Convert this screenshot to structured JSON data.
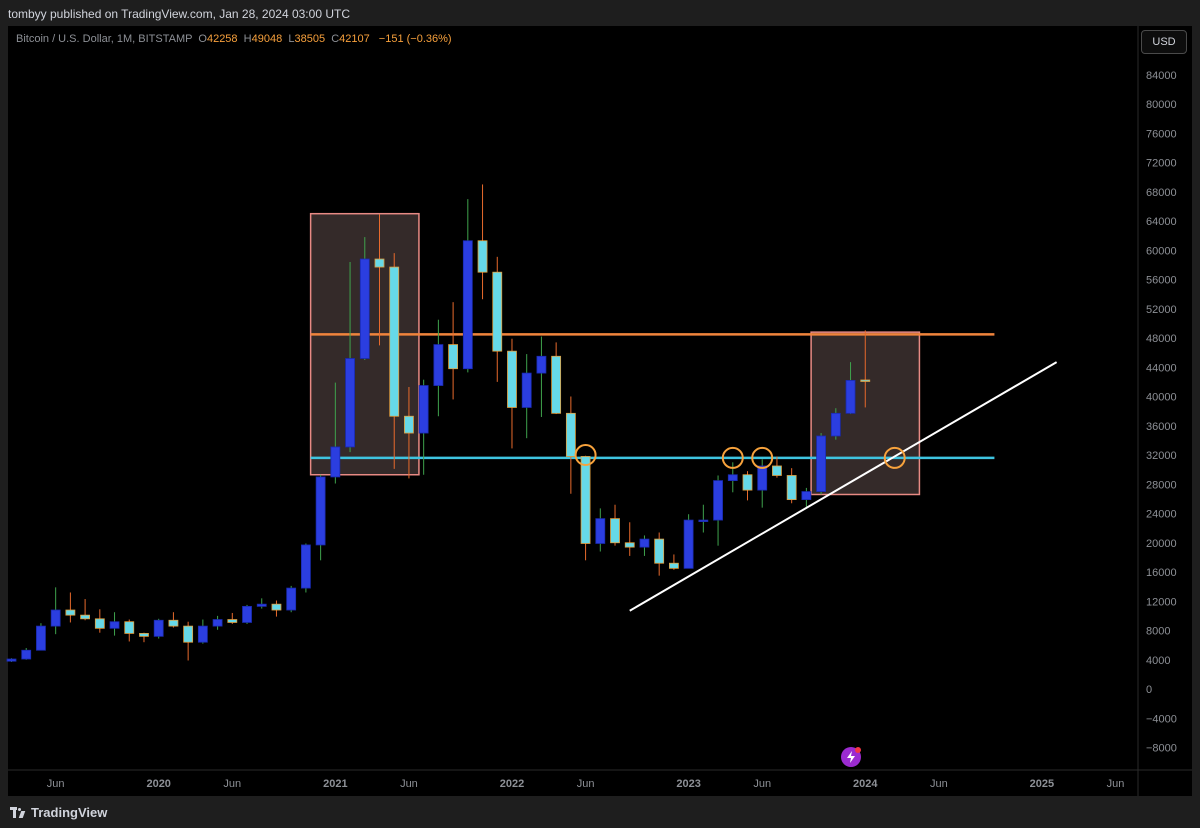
{
  "header": {
    "publish_text": "tombyy published on TradingView.com, Jan 28, 2024 03:00 UTC"
  },
  "symbol": {
    "name": "Bitcoin / U.S. Dollar, 1M, BITSTAMP",
    "open_key": "O",
    "open": "42258",
    "high_key": "H",
    "high": "49048",
    "low_key": "L",
    "low": "38505",
    "close_key": "C",
    "close": "42107",
    "change": "−151 (−0.36%)"
  },
  "currency_button": "USD",
  "footer": {
    "brand": "TradingView"
  },
  "colors": {
    "up": "#2b3ee0",
    "down": "#66d9e8",
    "wick_up": "#3fa34d",
    "wick_down": "#e86a2c",
    "resistance": "#f0843c",
    "support": "#3ec4e0",
    "trendline": "#ffffff",
    "zone_border": "#e88a84",
    "zone_fill": "#3a2f2e",
    "circle": "#f7a23c"
  },
  "chart_data": {
    "type": "candlestick",
    "title": "Bitcoin / U.S. Dollar, 1M, BITSTAMP",
    "ylim": [
      -10000,
      88000
    ],
    "y_ticks": [
      -8000,
      -4000,
      0,
      4000,
      8000,
      12000,
      16000,
      20000,
      24000,
      28000,
      32000,
      36000,
      40000,
      44000,
      48000,
      52000,
      56000,
      60000,
      64000,
      68000,
      72000,
      76000,
      80000,
      84000
    ],
    "x_ticks": [
      {
        "label": "Jun",
        "t": "2019-06"
      },
      {
        "label": "2020",
        "t": "2020-01"
      },
      {
        "label": "Jun",
        "t": "2020-06"
      },
      {
        "label": "2021",
        "t": "2021-01"
      },
      {
        "label": "Jun",
        "t": "2021-06"
      },
      {
        "label": "2022",
        "t": "2022-01"
      },
      {
        "label": "Jun",
        "t": "2022-06"
      },
      {
        "label": "2023",
        "t": "2023-01"
      },
      {
        "label": "Jun",
        "t": "2023-06"
      },
      {
        "label": "2024",
        "t": "2024-01"
      },
      {
        "label": "Jun",
        "t": "2024-06"
      },
      {
        "label": "2025",
        "t": "2025-01"
      },
      {
        "label": "Jun",
        "t": "2025-06"
      }
    ],
    "candles": [
      {
        "t": "2019-03",
        "o": 3800,
        "h": 4200,
        "l": 3700,
        "c": 4100
      },
      {
        "t": "2019-04",
        "o": 4100,
        "h": 5600,
        "l": 4000,
        "c": 5300
      },
      {
        "t": "2019-05",
        "o": 5300,
        "h": 9000,
        "l": 5300,
        "c": 8600
      },
      {
        "t": "2019-06",
        "o": 8600,
        "h": 13900,
        "l": 7500,
        "c": 10800
      },
      {
        "t": "2019-07",
        "o": 10800,
        "h": 13200,
        "l": 9100,
        "c": 10100
      },
      {
        "t": "2019-08",
        "o": 10100,
        "h": 12300,
        "l": 9400,
        "c": 9600
      },
      {
        "t": "2019-09",
        "o": 9600,
        "h": 10900,
        "l": 7700,
        "c": 8300
      },
      {
        "t": "2019-10",
        "o": 8300,
        "h": 10500,
        "l": 7300,
        "c": 9200
      },
      {
        "t": "2019-11",
        "o": 9200,
        "h": 9500,
        "l": 6500,
        "c": 7600
      },
      {
        "t": "2019-12",
        "o": 7600,
        "h": 7700,
        "l": 6400,
        "c": 7200
      },
      {
        "t": "2020-01",
        "o": 7200,
        "h": 9600,
        "l": 6900,
        "c": 9400
      },
      {
        "t": "2020-02",
        "o": 9400,
        "h": 10500,
        "l": 8400,
        "c": 8600
      },
      {
        "t": "2020-03",
        "o": 8600,
        "h": 9200,
        "l": 3900,
        "c": 6400
      },
      {
        "t": "2020-04",
        "o": 6400,
        "h": 9500,
        "l": 6200,
        "c": 8600
      },
      {
        "t": "2020-05",
        "o": 8600,
        "h": 10000,
        "l": 8100,
        "c": 9500
      },
      {
        "t": "2020-06",
        "o": 9500,
        "h": 10400,
        "l": 8900,
        "c": 9100
      },
      {
        "t": "2020-07",
        "o": 9100,
        "h": 11500,
        "l": 8900,
        "c": 11300
      },
      {
        "t": "2020-08",
        "o": 11300,
        "h": 12400,
        "l": 11000,
        "c": 11600
      },
      {
        "t": "2020-09",
        "o": 11600,
        "h": 12100,
        "l": 9900,
        "c": 10800
      },
      {
        "t": "2020-10",
        "o": 10800,
        "h": 14100,
        "l": 10500,
        "c": 13800
      },
      {
        "t": "2020-11",
        "o": 13800,
        "h": 19900,
        "l": 13200,
        "c": 19700
      },
      {
        "t": "2020-12",
        "o": 19700,
        "h": 29300,
        "l": 17600,
        "c": 29000
      },
      {
        "t": "2021-01",
        "o": 29000,
        "h": 41900,
        "l": 28100,
        "c": 33100
      },
      {
        "t": "2021-02",
        "o": 33100,
        "h": 58400,
        "l": 32400,
        "c": 45200
      },
      {
        "t": "2021-03",
        "o": 45200,
        "h": 61800,
        "l": 45000,
        "c": 58800
      },
      {
        "t": "2021-04",
        "o": 58800,
        "h": 64900,
        "l": 47000,
        "c": 57700
      },
      {
        "t": "2021-05",
        "o": 57700,
        "h": 59600,
        "l": 30100,
        "c": 37300
      },
      {
        "t": "2021-06",
        "o": 37300,
        "h": 41300,
        "l": 28800,
        "c": 35000
      },
      {
        "t": "2021-07",
        "o": 35000,
        "h": 42300,
        "l": 29300,
        "c": 41500
      },
      {
        "t": "2021-08",
        "o": 41500,
        "h": 50500,
        "l": 37300,
        "c": 47100
      },
      {
        "t": "2021-09",
        "o": 47100,
        "h": 52900,
        "l": 39600,
        "c": 43800
      },
      {
        "t": "2021-10",
        "o": 43800,
        "h": 67000,
        "l": 43300,
        "c": 61300
      },
      {
        "t": "2021-11",
        "o": 61300,
        "h": 69000,
        "l": 53300,
        "c": 57000
      },
      {
        "t": "2021-12",
        "o": 57000,
        "h": 59100,
        "l": 42000,
        "c": 46200
      },
      {
        "t": "2022-01",
        "o": 46200,
        "h": 47900,
        "l": 32900,
        "c": 38500
      },
      {
        "t": "2022-02",
        "o": 38500,
        "h": 45800,
        "l": 34300,
        "c": 43200
      },
      {
        "t": "2022-03",
        "o": 43200,
        "h": 48200,
        "l": 37200,
        "c": 45500
      },
      {
        "t": "2022-04",
        "o": 45500,
        "h": 47400,
        "l": 37600,
        "c": 37700
      },
      {
        "t": "2022-05",
        "o": 37700,
        "h": 40000,
        "l": 26700,
        "c": 31800
      },
      {
        "t": "2022-06",
        "o": 31800,
        "h": 31900,
        "l": 17600,
        "c": 19900
      },
      {
        "t": "2022-07",
        "o": 19900,
        "h": 24700,
        "l": 18800,
        "c": 23300
      },
      {
        "t": "2022-08",
        "o": 23300,
        "h": 25200,
        "l": 19600,
        "c": 20000
      },
      {
        "t": "2022-09",
        "o": 20000,
        "h": 22800,
        "l": 18200,
        "c": 19400
      },
      {
        "t": "2022-10",
        "o": 19400,
        "h": 21000,
        "l": 18200,
        "c": 20500
      },
      {
        "t": "2022-11",
        "o": 20500,
        "h": 21400,
        "l": 15500,
        "c": 17200
      },
      {
        "t": "2022-12",
        "o": 17200,
        "h": 18400,
        "l": 16300,
        "c": 16500
      },
      {
        "t": "2023-01",
        "o": 16500,
        "h": 23900,
        "l": 16500,
        "c": 23100
      },
      {
        "t": "2023-02",
        "o": 23100,
        "h": 25200,
        "l": 21400,
        "c": 23100
      },
      {
        "t": "2023-03",
        "o": 23100,
        "h": 29200,
        "l": 19600,
        "c": 28500
      },
      {
        "t": "2023-04",
        "o": 28500,
        "h": 31000,
        "l": 26900,
        "c": 29300
      },
      {
        "t": "2023-05",
        "o": 29300,
        "h": 29800,
        "l": 25800,
        "c": 27200
      },
      {
        "t": "2023-06",
        "o": 27200,
        "h": 31400,
        "l": 24800,
        "c": 30500
      },
      {
        "t": "2023-07",
        "o": 30500,
        "h": 31800,
        "l": 28900,
        "c": 29200
      },
      {
        "t": "2023-08",
        "o": 29200,
        "h": 30200,
        "l": 25400,
        "c": 25900
      },
      {
        "t": "2023-09",
        "o": 25900,
        "h": 27500,
        "l": 24900,
        "c": 27000
      },
      {
        "t": "2023-10",
        "o": 27000,
        "h": 35000,
        "l": 26600,
        "c": 34600
      },
      {
        "t": "2023-11",
        "o": 34600,
        "h": 38400,
        "l": 34100,
        "c": 37700
      },
      {
        "t": "2023-12",
        "o": 37700,
        "h": 44700,
        "l": 37600,
        "c": 42200
      },
      {
        "t": "2024-01",
        "o": 42258,
        "h": 49048,
        "l": 38505,
        "c": 42107
      }
    ],
    "annotations": {
      "resistance_level": 48500,
      "support_level": 31600,
      "zones": [
        {
          "t0": "2020-12",
          "t1": "2021-06",
          "y_low": 29300,
          "y_high": 65000
        },
        {
          "t0": "2023-10",
          "t1": "2024-04",
          "y_low": 26600,
          "y_high": 48800
        }
      ],
      "trendline": [
        {
          "t": "2022-09",
          "y": 10700
        },
        {
          "t": "2025-02",
          "y": 44700
        }
      ],
      "circles": [
        {
          "t": "2022-06",
          "y": 32000
        },
        {
          "t": "2023-04",
          "y": 31600
        },
        {
          "t": "2023-06",
          "y": 31600
        },
        {
          "t": "2024-03",
          "y": 31600
        }
      ]
    }
  }
}
